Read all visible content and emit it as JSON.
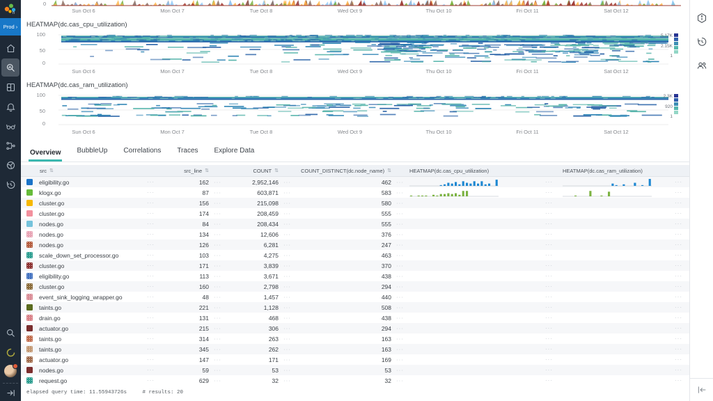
{
  "sidebar": {
    "env_label": "Prod ›",
    "nav": [
      {
        "name": "home-icon"
      },
      {
        "name": "query-icon",
        "selected": true
      },
      {
        "name": "boards-icon"
      },
      {
        "name": "alerts-bell-icon"
      },
      {
        "name": "slo-glasses-icon"
      },
      {
        "name": "pipeline-icon"
      },
      {
        "name": "service-map-icon"
      },
      {
        "name": "activity-history-icon"
      }
    ],
    "bottom": [
      {
        "name": "search-icon"
      },
      {
        "name": "usage-ring-icon"
      },
      {
        "name": "avatar"
      },
      {
        "name": "expand-sidebar-icon"
      }
    ]
  },
  "right_sidebar": {
    "icons": [
      {
        "name": "details-info-hex-icon"
      },
      {
        "name": "query-history-icon"
      },
      {
        "name": "team-activity-icon"
      }
    ],
    "collapse": {
      "name": "collapse-panel-icon"
    }
  },
  "x_ticks": [
    "Sun Oct 6",
    "Mon Oct 7",
    "Tue Oct 8",
    "Wed Oct 9",
    "Thu Oct 10",
    "Fri Oct 11",
    "Sat Oct 12"
  ],
  "strip_chart": {
    "y_zero_label": "0"
  },
  "heatmaps": [
    {
      "title": "HEATMAP(dc.cas_cpu_utilization)",
      "y_ticks": [
        "100",
        "50",
        "0"
      ],
      "legend_labels": [
        "5.17K",
        "2.15K",
        "1"
      ],
      "legend_colors": [
        "#283593",
        "#3161ad",
        "#3d8fb5",
        "#54b7ae",
        "#93d6c6"
      ]
    },
    {
      "title": "HEATMAP(dc.cas_ram_utilization)",
      "y_ticks": [
        "100",
        "50",
        "0"
      ],
      "legend_labels": [
        "2.3K",
        "920",
        "1"
      ],
      "legend_colors": [
        "#283593",
        "#3161ad",
        "#3d8fb5",
        "#54b7ae",
        "#93d6c6"
      ]
    }
  ],
  "tabs": {
    "items": [
      "Overview",
      "BubbleUp",
      "Correlations",
      "Traces",
      "Explore Data"
    ],
    "active_index": 0
  },
  "table": {
    "columns": [
      {
        "label": "src",
        "sortable": true
      },
      {
        "label": "src_line",
        "sortable": true
      },
      {
        "label": "COUNT",
        "sortable": true
      },
      {
        "label": "COUNT_DISTINCT(dc.node_name)",
        "sortable": true
      },
      {
        "label": "HEATMAP(dc.cas_cpu_utilization)",
        "sortable": false
      },
      {
        "label": "HEATMAP(dc.cas_ram_utilization)",
        "sortable": false
      }
    ],
    "rows": [
      {
        "src": "eligibility.go",
        "color": "#1a73c8",
        "pattern": false,
        "src_line": "162",
        "count": "2,952,146",
        "distinct": "462",
        "cpu_spark": [
          0,
          0,
          0,
          0,
          0,
          0,
          0,
          0,
          1,
          2,
          4,
          3,
          5,
          2,
          6,
          4,
          3,
          6,
          3,
          6,
          2,
          3,
          0,
          8
        ],
        "spark_color": "#1e88d2",
        "ram_spark": [
          0,
          0,
          0,
          0,
          0,
          0,
          0,
          0,
          0,
          0,
          0,
          0,
          0,
          3,
          1,
          0,
          2,
          0,
          0,
          4,
          0,
          1,
          0,
          9
        ]
      },
      {
        "src": "klogx.go",
        "color": "#66bb3a",
        "pattern": false,
        "src_line": "87",
        "count": "603,871",
        "distinct": "583",
        "cpu_spark": [
          1,
          0,
          1,
          1,
          1,
          0,
          2,
          1,
          3,
          3,
          4,
          3,
          4,
          2,
          7,
          7,
          0,
          0,
          0,
          0,
          0,
          0,
          0,
          0
        ],
        "spark_color": "#7cb342",
        "ram_spark": [
          0,
          0,
          0,
          1,
          0,
          0,
          0,
          7,
          0,
          0,
          1,
          0,
          6,
          0,
          0,
          0,
          0,
          0,
          0,
          0,
          0,
          0,
          0,
          0
        ]
      },
      {
        "src": "cluster.go",
        "color": "#f6b800",
        "pattern": false,
        "src_line": "156",
        "count": "215,098",
        "distinct": "580",
        "cpu_spark": [],
        "ram_spark": []
      },
      {
        "src": "cluster.go",
        "color": "#f3919e",
        "pattern": false,
        "src_line": "174",
        "count": "208,459",
        "distinct": "555",
        "cpu_spark": [],
        "ram_spark": []
      },
      {
        "src": "nodes.go",
        "color": "#76c3dc",
        "pattern": false,
        "src_line": "84",
        "count": "208,434",
        "distinct": "555",
        "cpu_spark": [],
        "ram_spark": []
      },
      {
        "src": "nodes.go",
        "color": "#e8a3b4",
        "pattern": true,
        "src_line": "134",
        "count": "12,606",
        "distinct": "376",
        "cpu_spark": [],
        "ram_spark": []
      },
      {
        "src": "nodes.go",
        "color": "#b35a3c",
        "pattern": true,
        "src_line": "126",
        "count": "6,281",
        "distinct": "247",
        "cpu_spark": [],
        "ram_spark": []
      },
      {
        "src": "scale_down_set_processor.go",
        "color": "#2a9d8f",
        "pattern": true,
        "src_line": "103",
        "count": "4,275",
        "distinct": "463",
        "cpu_spark": [],
        "ram_spark": []
      },
      {
        "src": "cluster.go",
        "color": "#8c3030",
        "pattern": true,
        "src_line": "171",
        "count": "3,839",
        "distinct": "370",
        "cpu_spark": [],
        "ram_spark": []
      },
      {
        "src": "eligibility.go",
        "color": "#3f6fbf",
        "pattern": true,
        "src_line": "113",
        "count": "3,671",
        "distinct": "438",
        "cpu_spark": [],
        "ram_spark": []
      },
      {
        "src": "cluster.go",
        "color": "#8a6a38",
        "pattern": true,
        "src_line": "160",
        "count": "2,798",
        "distinct": "294",
        "cpu_spark": [],
        "ram_spark": []
      },
      {
        "src": "event_sink_logging_wrapper.go",
        "color": "#d98a94",
        "pattern": true,
        "src_line": "48",
        "count": "1,457",
        "distinct": "440",
        "cpu_spark": [],
        "ram_spark": []
      },
      {
        "src": "taints.go",
        "color": "#5a6b1f",
        "pattern": false,
        "src_line": "221",
        "count": "1,128",
        "distinct": "508",
        "cpu_spark": [],
        "ram_spark": []
      },
      {
        "src": "drain.go",
        "color": "#d97f86",
        "pattern": true,
        "src_line": "131",
        "count": "468",
        "distinct": "438",
        "cpu_spark": [],
        "ram_spark": []
      },
      {
        "src": "actuator.go",
        "color": "#7a2e2e",
        "pattern": false,
        "src_line": "215",
        "count": "306",
        "distinct": "294",
        "cpu_spark": [],
        "ram_spark": []
      },
      {
        "src": "taints.go",
        "color": "#c06a4a",
        "pattern": true,
        "src_line": "314",
        "count": "263",
        "distinct": "163",
        "cpu_spark": [],
        "ram_spark": []
      },
      {
        "src": "taints.go",
        "color": "#c29670",
        "pattern": true,
        "src_line": "345",
        "count": "262",
        "distinct": "163",
        "cpu_spark": [],
        "ram_spark": []
      },
      {
        "src": "actuator.go",
        "color": "#a06a4a",
        "pattern": true,
        "src_line": "147",
        "count": "171",
        "distinct": "169",
        "cpu_spark": [],
        "ram_spark": []
      },
      {
        "src": "nodes.go",
        "color": "#7c2d2d",
        "pattern": false,
        "src_line": "59",
        "count": "53",
        "distinct": "53",
        "cpu_spark": [],
        "ram_spark": []
      },
      {
        "src": "request.go",
        "color": "#2a9d8f",
        "pattern": true,
        "src_line": "629",
        "count": "32",
        "distinct": "32",
        "cpu_spark": [],
        "ram_spark": []
      }
    ],
    "ellipsis": "···"
  },
  "status": {
    "elapsed": "elapsed query time: 11.55943726s",
    "results": "# results: 20"
  },
  "chart_data": [
    {
      "type": "area",
      "title": "top multi-series chart (cut off at viewport top, only baseline visible)",
      "x": [
        "Sun Oct 6",
        "Mon Oct 7",
        "Tue Oct 8",
        "Wed Oct 9",
        "Thu Oct 10",
        "Fri Oct 11",
        "Sat Oct 12"
      ],
      "ylabel": "",
      "y_visible_tick": 0,
      "baseline_color": "#9e3b32",
      "series_colors": [
        "#7cb342",
        "#8d6e63",
        "#ffb74d",
        "#90caf9",
        "#a33b32"
      ]
    },
    {
      "type": "heatmap",
      "title": "HEATMAP(dc.cas_cpu_utilization)",
      "x": [
        "Sun Oct 6",
        "Mon Oct 7",
        "Tue Oct 8",
        "Wed Oct 9",
        "Thu Oct 10",
        "Fri Oct 11",
        "Sat Oct 12"
      ],
      "ylim": [
        0,
        100
      ],
      "y_ticks": [
        0,
        50,
        100
      ],
      "legend_scale": {
        "max": "5.17K",
        "mid": "2.15K",
        "min": "1"
      },
      "dense_band_value_range": [
        75,
        96
      ],
      "note": "solid horizontal teal/blue bands at ~75-96%, scattered dashes 5-72%, density increases after Wed Oct 9"
    },
    {
      "type": "heatmap",
      "title": "HEATMAP(dc.cas_ram_utilization)",
      "x": [
        "Sun Oct 6",
        "Mon Oct 7",
        "Tue Oct 8",
        "Wed Oct 9",
        "Thu Oct 10",
        "Fri Oct 11",
        "Sat Oct 12"
      ],
      "ylim": [
        0,
        100
      ],
      "y_ticks": [
        0,
        50,
        100
      ],
      "legend_scale": {
        "max": "2.3K",
        "mid": "920",
        "min": "1"
      },
      "dense_band_value_range": [
        84,
        95
      ],
      "note": "solid bands at ~84-95%, intermittent segments at ~55-70% and ~33%"
    }
  ]
}
